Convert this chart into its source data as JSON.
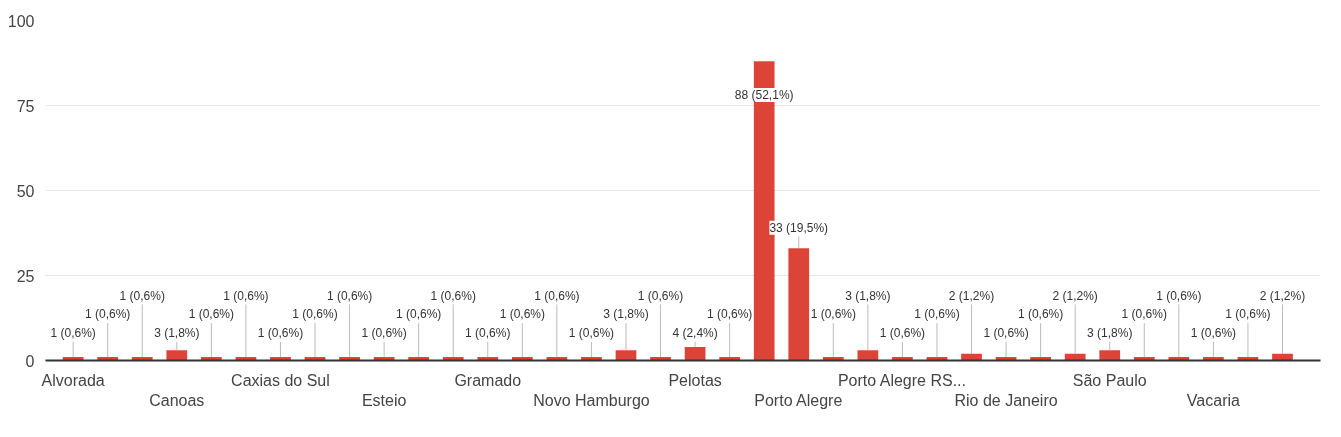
{
  "chart_data": {
    "type": "bar",
    "categories": [
      "Alvorada",
      null,
      null,
      "Canoas",
      null,
      null,
      "Caxias do Sul",
      null,
      null,
      "Esteio",
      null,
      null,
      "Gramado",
      null,
      null,
      "Novo Hamburgo",
      null,
      null,
      "Pelotas",
      null,
      null,
      "Porto Alegre",
      null,
      null,
      "Porto Alegre RS...",
      null,
      null,
      "Rio de Janeiro",
      null,
      null,
      "São Paulo",
      null,
      null,
      "Vacaria",
      null,
      null
    ],
    "values": [
      1,
      1,
      1,
      3,
      1,
      1,
      1,
      1,
      1,
      1,
      1,
      1,
      1,
      1,
      1,
      1,
      3,
      1,
      4,
      1,
      88,
      33,
      1,
      3,
      1,
      1,
      2,
      1,
      1,
      2,
      3,
      1,
      1,
      1,
      1,
      2
    ],
    "value_labels": [
      "1 (0,6%)",
      "1 (0,6%)",
      "1 (0,6%)",
      "3 (1,8%)",
      "1 (0,6%)",
      "1 (0,6%)",
      "1 (0,6%)",
      "1 (0,6%)",
      "1 (0,6%)",
      "1 (0,6%)",
      "1 (0,6%)",
      "1 (0,6%)",
      "1 (0,6%)",
      "1 (0,6%)",
      "1 (0,6%)",
      "1 (0,6%)",
      "3 (1,8%)",
      "1 (0,6%)",
      "4 (2,4%)",
      "1 (0,6%)",
      "88 (52,1%)",
      "33 (19,5%)",
      "1 (0,6%)",
      "3 (1,8%)",
      "1 (0,6%)",
      "1 (0,6%)",
      "2 (1,2%)",
      "1 (0,6%)",
      "1 (0,6%)",
      "2 (1,2%)",
      "3 (1,8%)",
      "1 (0,6%)",
      "1 (0,6%)",
      "1 (0,6%)",
      "1 (0,6%)",
      "2 (1,2%)"
    ],
    "color": "#db4437",
    "ylim": [
      0,
      100
    ],
    "yticks": [
      0,
      25,
      50,
      75,
      100
    ],
    "grid": "y"
  }
}
